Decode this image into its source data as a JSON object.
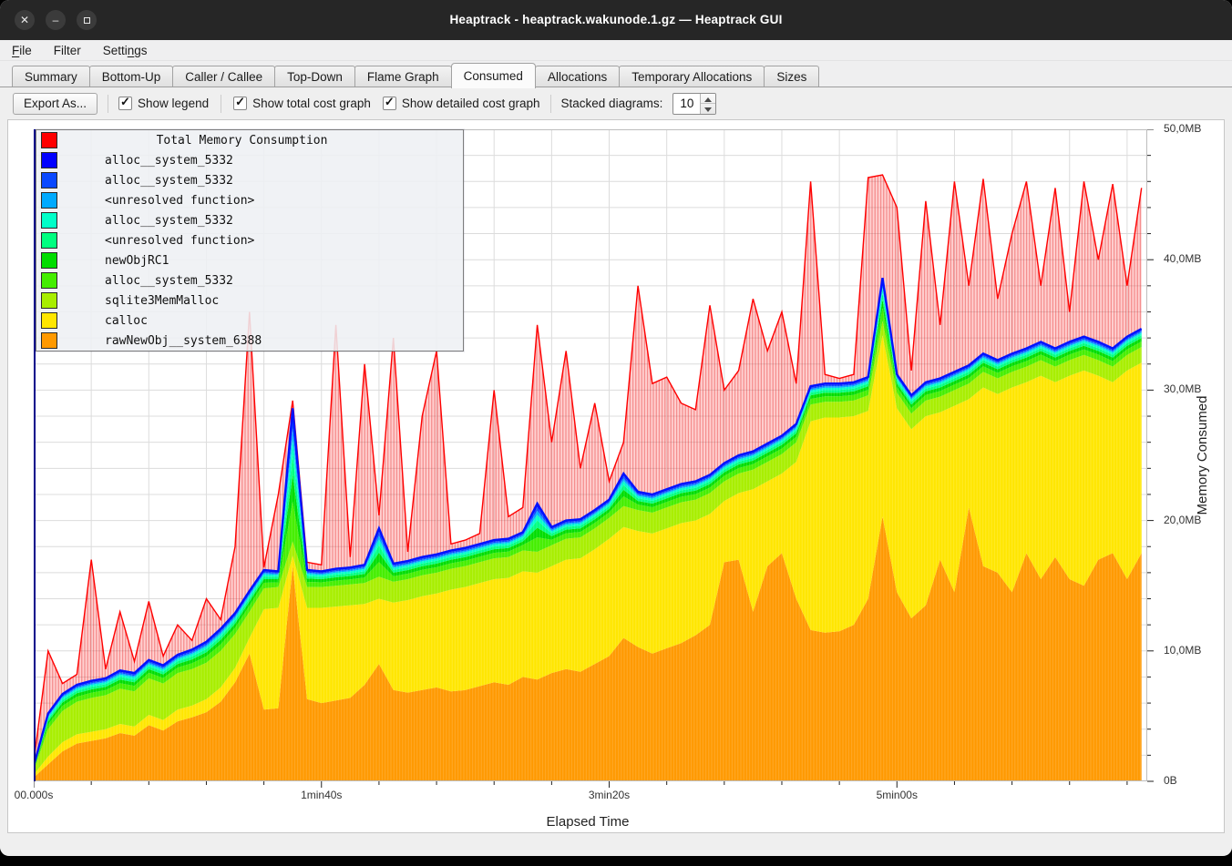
{
  "window": {
    "title": "Heaptrack - heaptrack.wakunode.1.gz — Heaptrack GUI",
    "controls": [
      {
        "name": "close",
        "glyph": "×"
      },
      {
        "name": "minimize",
        "glyph": "–"
      },
      {
        "name": "maximize",
        "glyph": ""
      }
    ]
  },
  "menu": {
    "items": [
      {
        "label": "File",
        "accel": "F"
      },
      {
        "label": "Filter",
        "accel": ""
      },
      {
        "label": "Settings",
        "accel": "n"
      }
    ]
  },
  "tabs": {
    "active": "Consumed",
    "items": [
      "Summary",
      "Bottom-Up",
      "Caller / Callee",
      "Top-Down",
      "Flame Graph",
      "Consumed",
      "Allocations",
      "Temporary Allocations",
      "Sizes"
    ]
  },
  "toolbar": {
    "export_label": "Export As...",
    "checkboxes": [
      {
        "label": "Show legend",
        "checked": true
      },
      {
        "label": "Show total cost graph",
        "checked": true
      },
      {
        "label": "Show detailed cost graph",
        "checked": true
      }
    ],
    "spin_label": "Stacked diagrams:",
    "spin_value": "10"
  },
  "chart_data": {
    "type": "area",
    "variant": "stacked-area-with-total",
    "legend_title": "Total Memory Consumption",
    "xlabel": "Elapsed Time",
    "ylabel": "Memory Consumed",
    "x_unit": "seconds",
    "y_unit": "MB",
    "x_start": 0,
    "x_step": 5,
    "x_max": 387,
    "ylim": [
      0,
      50
    ],
    "grid": {
      "x_minor_step_s": 20,
      "y_minor_step_mb": 2,
      "color": "#dcdcdc"
    },
    "x_ticks": [
      {
        "t": 0,
        "label": "00.000s"
      },
      {
        "t": 100,
        "label": "1min40s"
      },
      {
        "t": 200,
        "label": "3min20s"
      },
      {
        "t": 300,
        "label": "5min00s"
      }
    ],
    "y_ticks": [
      {
        "v": 0,
        "label": "0B"
      },
      {
        "v": 10,
        "label": "10,0MB"
      },
      {
        "v": 20,
        "label": "20,0MB"
      },
      {
        "v": 30,
        "label": "30,0MB"
      },
      {
        "v": 40,
        "label": "40,0MB"
      },
      {
        "v": 50,
        "label": "50,0MB"
      }
    ],
    "legend": [
      {
        "label": "Total Memory Consumption",
        "color": "#ff0000",
        "is_title": true
      },
      {
        "label": "alloc__system_5332",
        "color": "#0000ff"
      },
      {
        "label": "alloc__system_5332",
        "color": "#0a48ff"
      },
      {
        "label": "<unresolved function>",
        "color": "#00aaff"
      },
      {
        "label": "alloc__system_5332",
        "color": "#00ffc8"
      },
      {
        "label": "<unresolved function>",
        "color": "#00ff80"
      },
      {
        "label": "newObjRC1",
        "color": "#00dd00"
      },
      {
        "label": "alloc__system_5332",
        "color": "#44ee00"
      },
      {
        "label": "sqlite3MemMalloc",
        "color": "#a8ee00"
      },
      {
        "label": "calloc",
        "color": "#ffe600"
      },
      {
        "label": "rawNewObj__system_6388",
        "color": "#ff9900"
      }
    ],
    "series_note": "values are cumulative stack tops in MB, sampled every 5s",
    "series": [
      {
        "name": "rawNewObj__system_6388",
        "color": "#ff9900",
        "role": "stack",
        "values": [
          0.3,
          1.3,
          2.3,
          2.9,
          3.1,
          3.3,
          3.7,
          3.5,
          4.3,
          3.9,
          4.6,
          4.9,
          5.3,
          6.1,
          7.6,
          9.8,
          5.5,
          5.6,
          16.5,
          6.3,
          6.0,
          6.2,
          6.4,
          7.4,
          9.0,
          7.0,
          6.8,
          7.0,
          7.2,
          6.9,
          7.0,
          7.3,
          7.6,
          7.4,
          8.0,
          7.8,
          8.3,
          8.6,
          8.4,
          9.0,
          9.6,
          11.0,
          10.3,
          9.8,
          10.2,
          10.6,
          11.2,
          12.0,
          16.8,
          17.0,
          13.0,
          16.5,
          17.5,
          14.0,
          11.6,
          11.4,
          11.5,
          12.0,
          14.0,
          20.3,
          14.5,
          12.5,
          13.5,
          17.0,
          14.5,
          21.0,
          16.5,
          16.0,
          14.5,
          17.5,
          15.5,
          17.2,
          15.5,
          15.0,
          17.0,
          17.5,
          15.5,
          17.5
        ]
      },
      {
        "name": "calloc",
        "color": "#ffe600",
        "role": "stack",
        "values": [
          0.5,
          1.9,
          3.0,
          3.6,
          3.8,
          4.0,
          4.4,
          4.2,
          5.1,
          4.7,
          5.5,
          5.8,
          6.3,
          7.2,
          8.7,
          11.0,
          13.2,
          13.3,
          17.3,
          13.3,
          13.3,
          13.4,
          13.5,
          13.6,
          14.0,
          13.7,
          13.9,
          14.2,
          14.4,
          14.7,
          14.9,
          15.2,
          15.5,
          15.6,
          16.1,
          16.0,
          16.5,
          17.0,
          17.1,
          17.8,
          18.6,
          19.5,
          19.2,
          19.0,
          19.4,
          19.8,
          20.0,
          20.5,
          21.5,
          22.1,
          22.4,
          23.0,
          23.6,
          24.5,
          27.6,
          27.9,
          27.9,
          28.0,
          28.4,
          34.2,
          28.6,
          27.0,
          28.0,
          28.3,
          28.8,
          29.3,
          30.2,
          29.7,
          30.2,
          30.6,
          31.1,
          30.6,
          31.1,
          31.5,
          31.1,
          30.6,
          31.5,
          32.1
        ]
      },
      {
        "name": "sqlite3MemMalloc",
        "color": "#a8ee00",
        "role": "stack",
        "values": [
          0.8,
          4.0,
          5.4,
          6.1,
          6.4,
          6.6,
          7.1,
          6.9,
          7.9,
          7.5,
          8.3,
          8.6,
          9.1,
          10.0,
          11.3,
          13.0,
          14.8,
          14.9,
          18.4,
          14.9,
          14.9,
          15.0,
          15.1,
          15.2,
          15.7,
          15.3,
          15.5,
          15.8,
          16.0,
          16.3,
          16.5,
          16.8,
          17.1,
          17.2,
          17.7,
          17.6,
          18.1,
          18.6,
          18.7,
          19.4,
          20.2,
          21.1,
          20.8,
          20.6,
          21.0,
          21.4,
          21.6,
          22.1,
          23.0,
          23.6,
          23.9,
          24.5,
          25.1,
          26.0,
          28.9,
          29.1,
          29.1,
          29.2,
          29.6,
          35.3,
          29.8,
          28.2,
          29.2,
          29.5,
          30.0,
          30.5,
          31.4,
          30.9,
          31.4,
          31.8,
          32.3,
          31.8,
          32.3,
          32.7,
          32.3,
          31.8,
          32.7,
          33.3
        ]
      },
      {
        "name": "detailed_stack_top",
        "color": "#0000ff",
        "role": "stack-top",
        "values": [
          1.2,
          5.2,
          6.7,
          7.4,
          7.7,
          7.9,
          8.5,
          8.3,
          9.3,
          8.9,
          9.7,
          10.1,
          10.7,
          11.7,
          12.9,
          14.6,
          16.2,
          16.1,
          28.6,
          16.2,
          16.1,
          16.3,
          16.4,
          16.6,
          19.4,
          16.7,
          16.9,
          17.2,
          17.4,
          17.7,
          17.9,
          18.2,
          18.5,
          18.6,
          19.1,
          21.3,
          19.5,
          20.0,
          20.1,
          20.8,
          21.6,
          23.6,
          22.2,
          22.0,
          22.4,
          22.8,
          23.0,
          23.5,
          24.4,
          25.0,
          25.3,
          25.9,
          26.5,
          27.4,
          30.3,
          30.5,
          30.5,
          30.6,
          31.0,
          38.6,
          31.2,
          29.6,
          30.6,
          30.9,
          31.4,
          31.9,
          32.8,
          32.3,
          32.8,
          33.2,
          33.7,
          33.2,
          33.7,
          34.1,
          33.7,
          33.2,
          34.1,
          34.7
        ]
      },
      {
        "name": "Total Memory Consumption",
        "color": "#ff0000",
        "role": "total",
        "values": [
          1.5,
          10.0,
          7.5,
          8.2,
          17.0,
          8.6,
          13.0,
          9.2,
          13.8,
          9.6,
          12.0,
          10.8,
          14.0,
          12.4,
          18.0,
          36.0,
          16.4,
          22.0,
          29.2,
          16.8,
          16.6,
          35.0,
          17.2,
          32.0,
          20.4,
          34.0,
          17.6,
          28.0,
          33.0,
          18.2,
          18.5,
          19.0,
          30.0,
          20.3,
          21.0,
          35.0,
          26.0,
          33.0,
          24.0,
          29.0,
          23.0,
          26.0,
          38.0,
          30.5,
          31.0,
          29.0,
          28.5,
          36.5,
          30.0,
          31.5,
          37.0,
          33.0,
          36.0,
          30.5,
          46.0,
          31.2,
          30.9,
          31.2,
          46.3,
          46.5,
          44.0,
          31.5,
          44.5,
          35.0,
          46.0,
          38.0,
          46.2,
          37.0,
          42.0,
          46.0,
          38.0,
          45.5,
          36.0,
          46.0,
          40.0,
          45.8,
          38.0,
          45.5
        ]
      }
    ],
    "upper_thin_bands": [
      {
        "name": "alloc__system_5332",
        "color": "#44ee00",
        "fraction": 0.3
      },
      {
        "name": "newObjRC1",
        "color": "#00dd00",
        "fraction": 0.2
      },
      {
        "name": "<unresolved function>",
        "color": "#00ff80",
        "fraction": 0.15
      },
      {
        "name": "alloc__system_5332",
        "color": "#00ffc8",
        "fraction": 0.12
      },
      {
        "name": "<unresolved function>",
        "color": "#00aaff",
        "fraction": 0.08
      },
      {
        "name": "alloc__system_5332",
        "color": "#0a48ff",
        "fraction": 0.08
      },
      {
        "name": "alloc__system_5332",
        "color": "#0000ff",
        "fraction": 0.07
      }
    ],
    "colors": {
      "total_line": "#ff0000",
      "detail_line": "#0012ff",
      "axis_left": "#00008b",
      "plot_border": "#bdbdbd"
    }
  }
}
